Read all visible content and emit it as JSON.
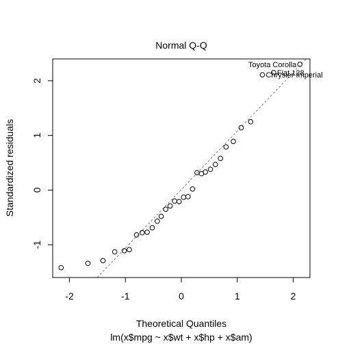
{
  "chart_data": {
    "type": "scatter",
    "title": "Normal Q-Q",
    "xlabel": "Theoretical Quantiles",
    "caption": "lm(x$mpg ~ x$wt + x$hp + x$am)",
    "ylabel": "Standardized residuals",
    "xlim": [
      -2.3,
      2.3
    ],
    "ylim": [
      -1.6,
      2.4
    ],
    "xticks": [
      -2,
      -1,
      0,
      1,
      2
    ],
    "yticks": [
      -1,
      0,
      1,
      2
    ],
    "grid": false,
    "reference_line": {
      "slope": 1.07,
      "intercept": 0.01,
      "style": "dashed"
    },
    "points": [
      {
        "x": -2.15,
        "y": -1.42
      },
      {
        "x": -1.67,
        "y": -1.34
      },
      {
        "x": -1.4,
        "y": -1.29
      },
      {
        "x": -1.19,
        "y": -1.13
      },
      {
        "x": -1.02,
        "y": -1.11
      },
      {
        "x": -0.93,
        "y": -1.09
      },
      {
        "x": -0.8,
        "y": -0.82
      },
      {
        "x": -0.7,
        "y": -0.78
      },
      {
        "x": -0.61,
        "y": -0.77
      },
      {
        "x": -0.52,
        "y": -0.69
      },
      {
        "x": -0.43,
        "y": -0.57
      },
      {
        "x": -0.36,
        "y": -0.48
      },
      {
        "x": -0.28,
        "y": -0.35
      },
      {
        "x": -0.2,
        "y": -0.29
      },
      {
        "x": -0.12,
        "y": -0.2
      },
      {
        "x": -0.04,
        "y": -0.21
      },
      {
        "x": 0.04,
        "y": -0.13
      },
      {
        "x": 0.12,
        "y": -0.12
      },
      {
        "x": 0.2,
        "y": 0.02
      },
      {
        "x": 0.28,
        "y": 0.32
      },
      {
        "x": 0.36,
        "y": 0.3
      },
      {
        "x": 0.43,
        "y": 0.33
      },
      {
        "x": 0.52,
        "y": 0.38
      },
      {
        "x": 0.61,
        "y": 0.47
      },
      {
        "x": 0.7,
        "y": 0.58
      },
      {
        "x": 0.8,
        "y": 0.79
      },
      {
        "x": 0.93,
        "y": 0.89
      },
      {
        "x": 1.07,
        "y": 1.14
      },
      {
        "x": 1.24,
        "y": 1.25
      },
      {
        "x": 1.45,
        "y": 2.11
      },
      {
        "x": 1.65,
        "y": 2.15
      },
      {
        "x": 2.12,
        "y": 2.3
      }
    ],
    "annotations": [
      {
        "label": "Toyota Corolla",
        "x": 2.12,
        "y": 2.3,
        "align": "end"
      },
      {
        "label": "Fiat 128",
        "x": 1.65,
        "y": 2.15,
        "align": "start"
      },
      {
        "label": "Chrysler Imperial",
        "x": 1.45,
        "y": 2.11,
        "align": "start"
      }
    ]
  }
}
